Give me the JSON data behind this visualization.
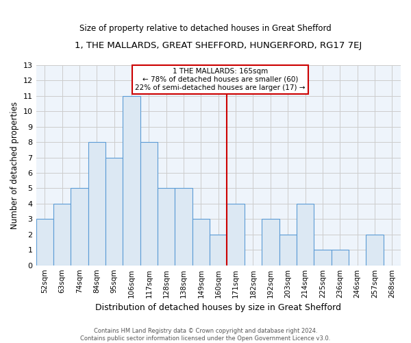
{
  "title": "1, THE MALLARDS, GREAT SHEFFORD, HUNGERFORD, RG17 7EJ",
  "subtitle": "Size of property relative to detached houses in Great Shefford",
  "xlabel": "Distribution of detached houses by size in Great Shefford",
  "ylabel": "Number of detached properties",
  "bin_labels": [
    "52sqm",
    "63sqm",
    "74sqm",
    "84sqm",
    "95sqm",
    "106sqm",
    "117sqm",
    "128sqm",
    "138sqm",
    "149sqm",
    "160sqm",
    "171sqm",
    "182sqm",
    "192sqm",
    "203sqm",
    "214sqm",
    "225sqm",
    "236sqm",
    "246sqm",
    "257sqm",
    "268sqm"
  ],
  "bar_heights": [
    3,
    4,
    5,
    8,
    7,
    11,
    8,
    5,
    5,
    3,
    2,
    4,
    0,
    3,
    2,
    4,
    1,
    1,
    0,
    2,
    0
  ],
  "bar_color": "#dce8f3",
  "bar_edge_color": "#5b9bd5",
  "reference_line_x": 10.5,
  "reference_line_color": "#cc0000",
  "annotation_title": "1 THE MALLARDS: 165sqm",
  "annotation_line1": "← 78% of detached houses are smaller (60)",
  "annotation_line2": "22% of semi-detached houses are larger (17) →",
  "annotation_box_color": "#ffffff",
  "annotation_box_edge_color": "#cc0000",
  "ylim": [
    0,
    13
  ],
  "yticks": [
    0,
    1,
    2,
    3,
    4,
    5,
    6,
    7,
    8,
    9,
    10,
    11,
    12,
    13
  ],
  "footer_line1": "Contains HM Land Registry data © Crown copyright and database right 2024.",
  "footer_line2": "Contains public sector information licensed under the Open Government Licence v3.0.",
  "background_color": "#ffffff",
  "grid_color": "#cccccc"
}
